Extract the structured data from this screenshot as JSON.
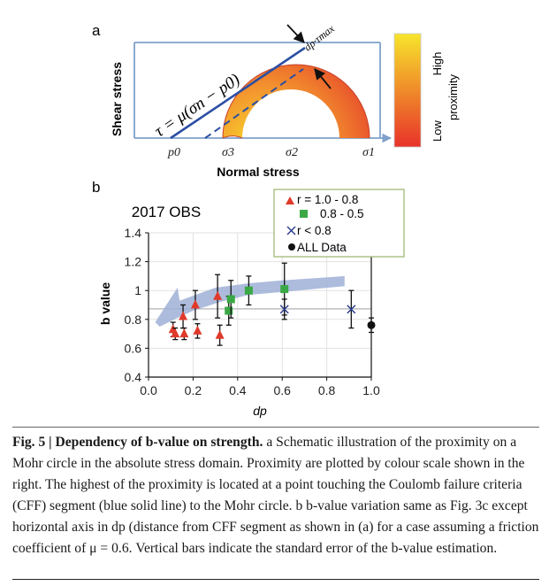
{
  "panel_a": {
    "label": "a",
    "ylabel": "Shear stress",
    "xlabel": "Normal stress",
    "equation": "τ = μ(σn − p0)",
    "dp_label": "dp·τmax",
    "ticks": [
      "p0",
      "σ3",
      "σ2",
      "σ1"
    ],
    "colorbar": {
      "high": "High",
      "low": "Low",
      "title": "proximity",
      "top_color": "#f7e52b",
      "bottom_color": "#e8322a"
    },
    "line_color": "#2c4fa3"
  },
  "panel_b": {
    "label": "b"
  },
  "chart_data": {
    "type": "scatter",
    "title": "2017 OBS",
    "xlabel": "dp",
    "ylabel": "b value",
    "xlim": [
      0.0,
      1.0
    ],
    "ylim": [
      0.4,
      1.4
    ],
    "xticks": [
      "0.0",
      "0.2",
      "0.4",
      "0.6",
      "0.8",
      "1.0"
    ],
    "yticks": [
      "0.4",
      "0.6",
      "0.8",
      "1",
      "1.2",
      "1.4"
    ],
    "legend": {
      "placement": "top-right",
      "entries": [
        "r = 1.0 - 0.8",
        "0.8 - 0.5",
        "r < 0.8",
        "ALL Data"
      ]
    },
    "series": [
      {
        "name": "r = 1.0 - 0.8",
        "marker": "triangle",
        "color": "#e03a2b",
        "points": [
          {
            "x": 0.11,
            "y": 0.73,
            "err": 0.05
          },
          {
            "x": 0.12,
            "y": 0.7,
            "err": 0.04
          },
          {
            "x": 0.155,
            "y": 0.82,
            "err": 0.08
          },
          {
            "x": 0.16,
            "y": 0.7,
            "err": 0.04
          },
          {
            "x": 0.21,
            "y": 0.9,
            "err": 0.1
          },
          {
            "x": 0.22,
            "y": 0.72,
            "err": 0.05
          },
          {
            "x": 0.31,
            "y": 0.96,
            "err": 0.15
          },
          {
            "x": 0.32,
            "y": 0.69,
            "err": 0.07
          }
        ]
      },
      {
        "name": "0.8 - 0.5",
        "marker": "square",
        "color": "#3aa845",
        "points": [
          {
            "x": 0.36,
            "y": 0.86,
            "err": 0.1
          },
          {
            "x": 0.37,
            "y": 0.94,
            "err": 0.13
          },
          {
            "x": 0.45,
            "y": 1.0,
            "err": 0.1
          },
          {
            "x": 0.61,
            "y": 1.01,
            "err": 0.18
          }
        ]
      },
      {
        "name": "r < 0.8",
        "marker": "cross",
        "color": "#2b3c8f",
        "points": [
          {
            "x": 0.61,
            "y": 0.87,
            "err": 0.07
          },
          {
            "x": 0.91,
            "y": 0.87,
            "err": 0.13
          }
        ]
      },
      {
        "name": "ALL Data",
        "marker": "circle",
        "color": "#111111",
        "points": [
          {
            "x": 1.0,
            "y": 0.76,
            "err": 0.05
          }
        ]
      }
    ],
    "trend_band_color": "#9fb0d6"
  },
  "caption": {
    "fig": "Fig. 5 | ",
    "title": "Dependency of b-value on strength.",
    "text": " a Schematic illustration of the proximity on a Mohr circle in the absolute stress domain. Proximity are plotted by colour scale shown in the right. The highest of the proximity is located at a point touching the Coulomb failure criteria (CFF) segment (blue solid line) to the Mohr circle. ",
    "b_part": "b b-value variation same as Fig. 3c except horizontal axis in dp (distance from CFF segment as shown in (a) for a case assuming a friction coefficient of μ = 0.6. Vertical bars indicate the standard error of the b-value estimation."
  }
}
